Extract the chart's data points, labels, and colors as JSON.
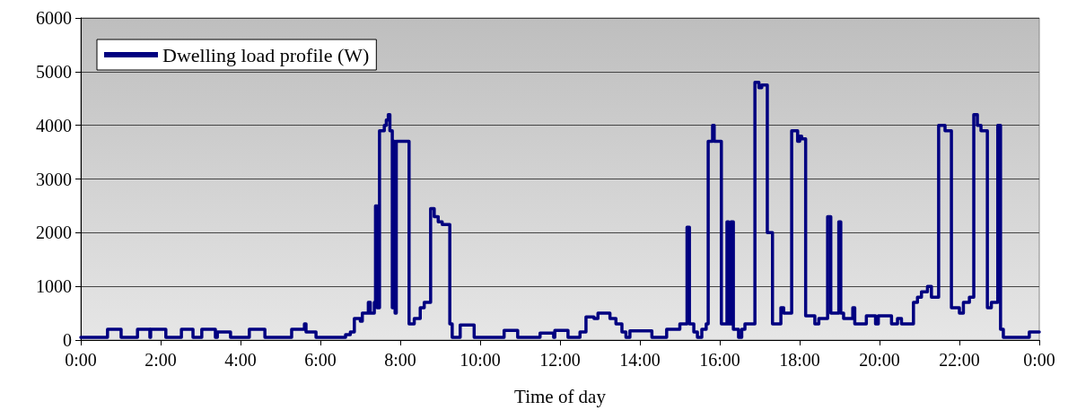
{
  "chart_data": {
    "type": "step",
    "xlabel": "Time of day",
    "xlim": [
      0,
      24
    ],
    "xticks": [
      {
        "value": 0,
        "label": "0:00"
      },
      {
        "value": 2,
        "label": "2:00"
      },
      {
        "value": 4,
        "label": "4:00"
      },
      {
        "value": 6,
        "label": "6:00"
      },
      {
        "value": 8,
        "label": "8:00"
      },
      {
        "value": 10,
        "label": "10:00"
      },
      {
        "value": 12,
        "label": "12:00"
      },
      {
        "value": 14,
        "label": "14:00"
      },
      {
        "value": 16,
        "label": "16:00"
      },
      {
        "value": 18,
        "label": "18:00"
      },
      {
        "value": 20,
        "label": "20:00"
      },
      {
        "value": 22,
        "label": "22:00"
      },
      {
        "value": 24,
        "label": "0:00"
      }
    ],
    "ylim": [
      0,
      6000
    ],
    "yticks": [
      0,
      1000,
      2000,
      3000,
      4000,
      5000,
      6000
    ],
    "grid": "y",
    "legend": "top left",
    "marker": "none",
    "line_style": "solid",
    "series": [
      {
        "name": "Dwelling load profile (W)",
        "color": "#000080",
        "x": [
          0,
          0.67,
          1.01,
          1.42,
          1.73,
          1.75,
          2.13,
          2.52,
          2.81,
          3.03,
          3.37,
          3.42,
          3.75,
          4.22,
          4.61,
          5.28,
          5.6,
          5.64,
          5.89,
          6.63,
          6.75,
          6.85,
          7.0,
          7.05,
          7.2,
          7.25,
          7.35,
          7.38,
          7.42,
          7.48,
          7.6,
          7.65,
          7.7,
          7.74,
          7.8,
          7.84,
          7.87,
          7.9,
          8.22,
          8.35,
          8.5,
          8.6,
          8.76,
          8.85,
          8.95,
          9.05,
          9.24,
          9.3,
          9.5,
          9.85,
          10.6,
          10.94,
          11.5,
          11.84,
          11.87,
          12.2,
          12.5,
          12.65,
          12.85,
          12.95,
          13.25,
          13.4,
          13.55,
          13.65,
          13.75,
          14.3,
          14.67,
          15.0,
          15.18,
          15.24,
          15.35,
          15.44,
          15.55,
          15.66,
          15.71,
          15.82,
          15.86,
          16.04,
          16.18,
          16.22,
          16.28,
          16.34,
          16.47,
          16.55,
          16.63,
          16.88,
          16.98,
          17.05,
          17.19,
          17.32,
          17.53,
          17.6,
          17.8,
          17.95,
          18.0,
          18.05,
          18.15,
          18.38,
          18.48,
          18.7,
          18.78,
          18.98,
          19.03,
          19.1,
          19.33,
          19.38,
          19.67,
          19.9,
          19.97,
          20.3,
          20.45,
          20.55,
          20.85,
          20.95,
          21.05,
          21.2,
          21.3,
          21.48,
          21.64,
          21.8,
          22.0,
          22.1,
          22.25,
          22.36,
          22.45,
          22.54,
          22.7,
          22.8,
          22.96,
          23.03,
          23.1,
          23.75,
          24
        ],
        "values": [
          50,
          200,
          50,
          200,
          50,
          200,
          50,
          200,
          50,
          200,
          50,
          150,
          50,
          200,
          50,
          200,
          300,
          150,
          50,
          100,
          150,
          400,
          350,
          500,
          700,
          500,
          700,
          2500,
          600,
          3900,
          4000,
          4100,
          4200,
          3900,
          600,
          3700,
          500,
          3700,
          300,
          400,
          600,
          700,
          2450,
          2300,
          2200,
          2150,
          300,
          50,
          280,
          50,
          180,
          50,
          130,
          50,
          180,
          50,
          150,
          430,
          400,
          500,
          400,
          300,
          150,
          50,
          170,
          50,
          200,
          300,
          2100,
          300,
          150,
          50,
          200,
          300,
          3700,
          4000,
          3700,
          300,
          2200,
          300,
          2200,
          200,
          50,
          200,
          300,
          4800,
          4700,
          4750,
          2000,
          300,
          600,
          500,
          3900,
          3700,
          3800,
          3750,
          450,
          300,
          400,
          2300,
          500,
          2200,
          500,
          400,
          600,
          300,
          450,
          300,
          450,
          300,
          400,
          300,
          700,
          800,
          900,
          1000,
          800,
          4000,
          3900,
          600,
          500,
          700,
          800,
          4200,
          4000,
          3900,
          600,
          700,
          4000,
          200,
          50,
          150,
          150
        ]
      }
    ]
  }
}
